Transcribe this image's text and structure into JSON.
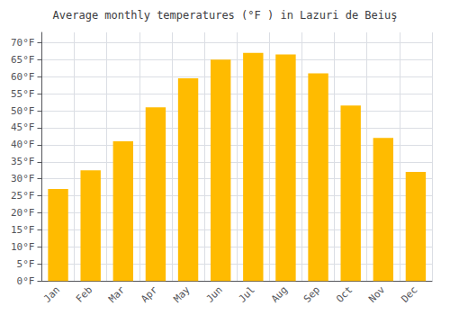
{
  "chart_data": {
    "type": "bar",
    "title": "Average monthly temperatures (°F ) in Lazuri de Beiuş",
    "categories": [
      "Jan",
      "Feb",
      "Mar",
      "Apr",
      "May",
      "Jun",
      "Jul",
      "Aug",
      "Sep",
      "Oct",
      "Nov",
      "Dec"
    ],
    "values": [
      27,
      32.5,
      41,
      51,
      59.5,
      65,
      67,
      66.5,
      61,
      51.5,
      42,
      32
    ],
    "color": "#FFBB00",
    "ylim": [
      0,
      73
    ],
    "yticks": [
      {
        "value": 0,
        "label": "0°F"
      },
      {
        "value": 5,
        "label": "5°F"
      },
      {
        "value": 10,
        "label": "10°F"
      },
      {
        "value": 15,
        "label": "15°F"
      },
      {
        "value": 20,
        "label": "20°F"
      },
      {
        "value": 25,
        "label": "25°F"
      },
      {
        "value": 30,
        "label": "30°F"
      },
      {
        "value": 35,
        "label": "35°F"
      },
      {
        "value": 40,
        "label": "40°F"
      },
      {
        "value": 45,
        "label": "45°F"
      },
      {
        "value": 50,
        "label": "50°F"
      },
      {
        "value": 55,
        "label": "55°F"
      },
      {
        "value": 60,
        "label": "60°F"
      },
      {
        "value": 65,
        "label": "65°F"
      },
      {
        "value": 70,
        "label": "70°F"
      }
    ],
    "grid": true
  }
}
